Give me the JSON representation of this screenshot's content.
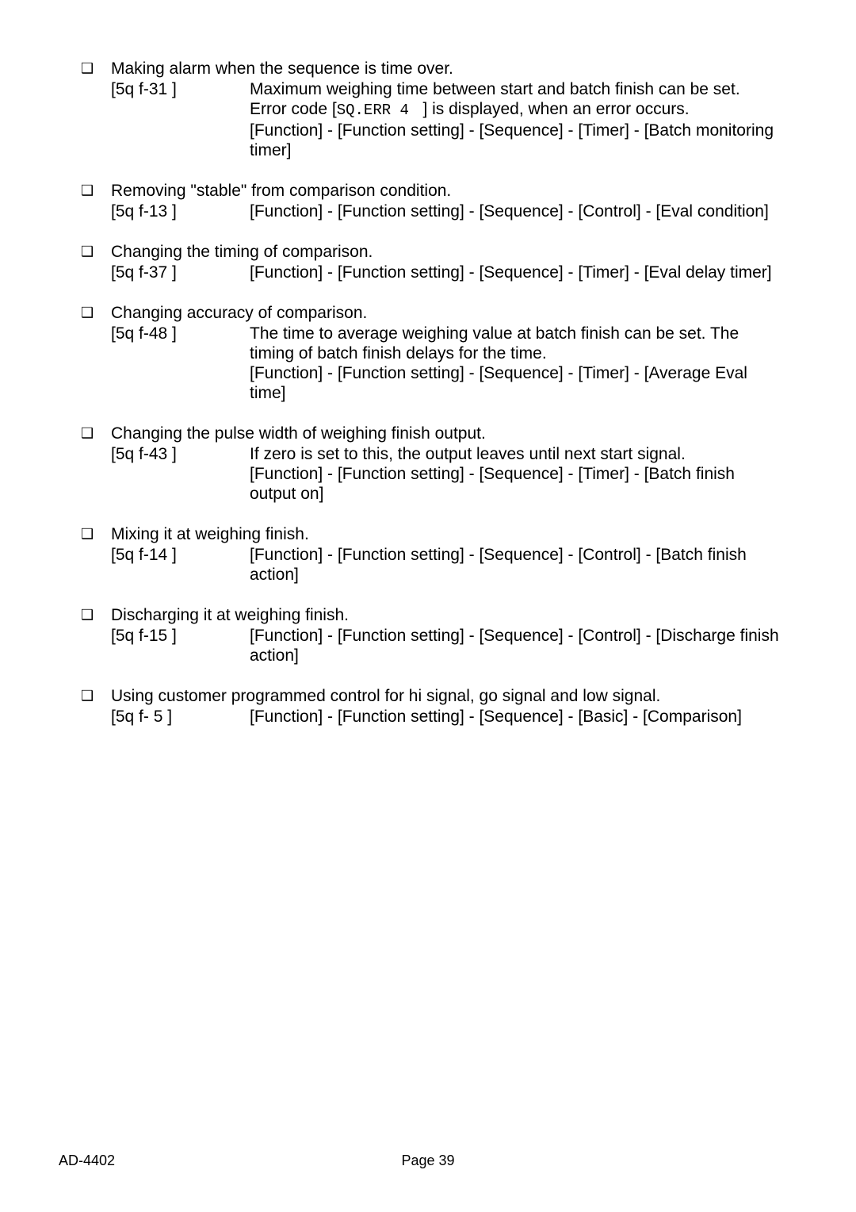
{
  "bullet_glyph": "❑",
  "items": [
    {
      "lead": "Making alarm when the sequence is time over.",
      "code": "[5q f-31   ]",
      "desc": "Maximum weighing time between start and batch finish can be set. Error code [<span class='mono'>SQ.ERR 4</span>&nbsp;&nbsp;&nbsp;] is displayed, when an error occurs.<br>[Function] - [Function setting] - [Sequence] - [Timer] - [Batch monitoring timer]"
    },
    {
      "lead": "Removing \"stable\" from comparison condition.",
      "code": "[5q f-13   ]",
      "desc": "[Function] - [Function setting] - [Sequence] - [Control] - [Eval condition]"
    },
    {
      "lead": "Changing the timing of comparison.",
      "code": "[5q f-37   ]",
      "desc": "[Function] - [Function setting] - [Sequence] - [Timer] - [Eval delay timer]"
    },
    {
      "lead": "Changing accuracy of comparison.",
      "code": "[5q f-48   ]",
      "desc": "The time to average weighing value at batch finish can be set. The timing of batch finish delays for the time.<br>[Function] - [Function setting] - [Sequence] - [Timer] - [Average Eval time]"
    },
    {
      "lead": "Changing the pulse width of weighing finish output.",
      "code": "[5q f-43   ]",
      "desc": "If zero is set to this, the output leaves until next start signal.<br>[Function] - [Function setting] - [Sequence] - [Timer] - [Batch finish output on]"
    },
    {
      "lead": "Mixing it at weighing finish.",
      "code": "[5q f-14   ]",
      "desc": "[Function] - [Function setting] - [Sequence] - [Control] - [Batch finish action]"
    },
    {
      "lead": "Discharging it at weighing finish.",
      "code": "[5q f-15   ]",
      "desc": "[Function] - [Function setting] - [Sequence] - [Control] - [Discharge finish action]"
    },
    {
      "lead": "Using customer programmed control for hi signal, go signal and low signal.",
      "code": "[5q f- 5    ]",
      "desc": "[Function] - [Function setting] - [Sequence] - [Basic] - [Comparison]"
    }
  ],
  "footer": {
    "left": "AD-4402",
    "center": "Page 39"
  }
}
